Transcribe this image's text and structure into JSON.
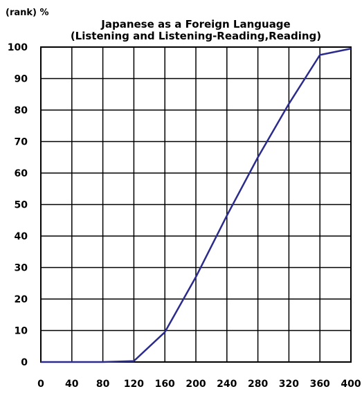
{
  "chart_data": {
    "type": "line",
    "title_lines": [
      "Japanese as a Foreign Language",
      "(Listening and Listening-Reading,Reading)"
    ],
    "xlabel": "",
    "ylabel": "(rank) %",
    "xlim": [
      0,
      400
    ],
    "ylim": [
      0,
      100
    ],
    "x_ticks": [
      0,
      40,
      80,
      120,
      160,
      200,
      240,
      280,
      320,
      360,
      400
    ],
    "y_ticks": [
      0,
      10,
      20,
      30,
      40,
      50,
      60,
      70,
      80,
      90,
      100
    ],
    "x_tick_labels": [
      "0",
      "40",
      "80",
      "120",
      "160",
      "200",
      "240",
      "280",
      "320",
      "360",
      "400"
    ],
    "y_tick_labels": [
      "0",
      "10",
      "20",
      "30",
      "40",
      "50",
      "60",
      "70",
      "80",
      "90",
      "100"
    ],
    "grid": true,
    "legend": "none",
    "series": [
      {
        "color": "#2b2b8c",
        "x": [
          0,
          40,
          80,
          120,
          160,
          200,
          240,
          280,
          320,
          360,
          400
        ],
        "y": [
          0,
          0,
          0,
          0.3,
          9.5,
          27,
          46.5,
          65,
          82,
          97.5,
          99.5
        ]
      }
    ]
  }
}
